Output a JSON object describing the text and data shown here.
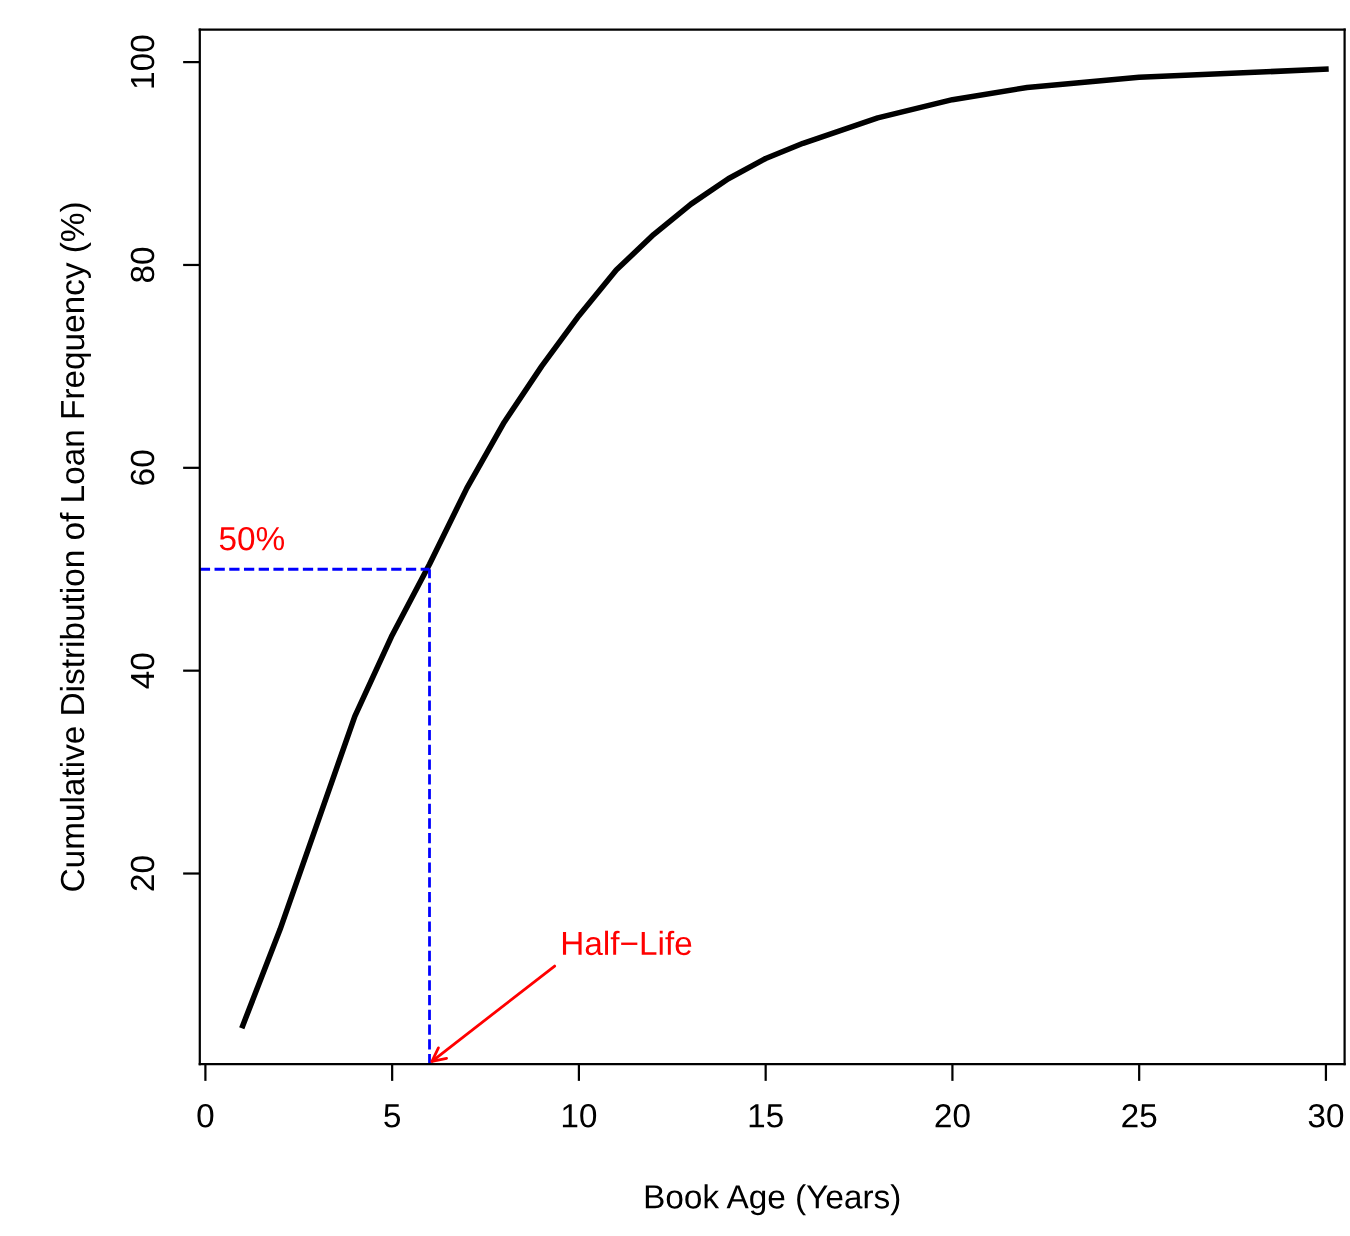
{
  "chart_data": {
    "type": "line",
    "xlabel": "Book Age (Years)",
    "ylabel": "Cumulative Distribution of Loan Frequency (%)",
    "x": [
      1,
      2,
      3,
      4,
      5,
      6,
      7,
      8,
      9,
      10,
      11,
      12,
      13,
      14,
      15,
      16,
      18,
      20,
      22,
      25,
      30
    ],
    "series": [
      {
        "color": "#000000",
        "values": [
          5,
          14.5,
          25,
          35.5,
          43.5,
          50.5,
          58,
          64.5,
          70,
          75,
          79.5,
          83,
          86,
          88.5,
          90.5,
          92,
          94.5,
          96.3,
          97.5,
          98.5,
          99.3
        ]
      }
    ],
    "xlim": [
      -0.15,
      30.5
    ],
    "ylim": [
      1.2,
      103.2
    ],
    "xticks": [
      0,
      5,
      10,
      15,
      20,
      25,
      30
    ],
    "yticks": [
      20,
      40,
      60,
      80,
      100
    ],
    "ref_lines": [
      {
        "axis": "y",
        "value": 50,
        "label": "50%",
        "color": "#0000ff",
        "line_style": "dashed"
      },
      {
        "axis": "x",
        "value": 6,
        "label": null,
        "color": "#0000ff",
        "line_style": "dashed"
      }
    ],
    "annotations": [
      {
        "text": "Half−Life",
        "x": 6,
        "y": 1.3
      }
    ],
    "grid": false,
    "marker": "none",
    "line_style": "solid",
    "legend": false
  }
}
